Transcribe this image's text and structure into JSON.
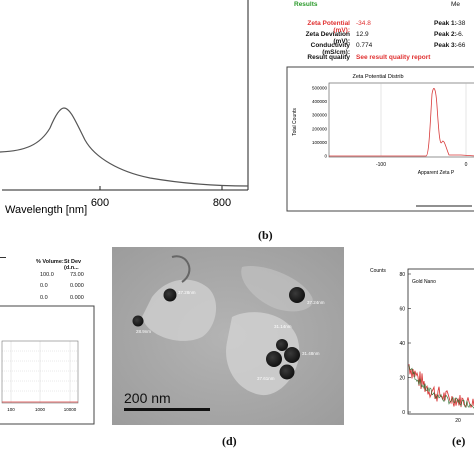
{
  "panel_labels": {
    "b": "(b)",
    "d": "(d)",
    "e": "(e)"
  },
  "uvvis": {
    "xlabel": "Wavelength [nm]",
    "tick_labels": [
      "600",
      "800"
    ]
  },
  "zeta": {
    "results_heading": "Results",
    "header_right": "Me",
    "rows": [
      {
        "label": "Zeta Potential (mV):",
        "value": "-34.8",
        "peak_label": "Peak 1:",
        "peak_value": "-38"
      },
      {
        "label": "Zeta Deviation (mV):",
        "value": "12.9",
        "peak_label": "Peak 2:",
        "peak_value": "-6."
      },
      {
        "label": "Conductivity (mS/cm):",
        "value": "0.774",
        "peak_label": "Peak 3:",
        "peak_value": "-66"
      }
    ],
    "quality_label": "Result quality",
    "quality_value": "See result quality report",
    "chart_title": "Zeta Potential Distrib",
    "ylabel": "Total Counts",
    "yticks": [
      "500000",
      "400000",
      "300000",
      "200000",
      "100000",
      "0"
    ],
    "xticks": [
      "-100",
      "0"
    ],
    "xlabel": "Apparent Zeta P"
  },
  "dls_table": {
    "headers": [
      "% Volume:",
      "St Dev (d.n..."
    ],
    "rows": [
      [
        "100.0",
        "73.00"
      ],
      [
        "0.0",
        "0.000"
      ],
      [
        "0.0",
        "0.000"
      ]
    ],
    "xticks": [
      "100",
      "1000",
      "10000"
    ]
  },
  "tem": {
    "scalebar": "200 nm",
    "particle_labels": [
      "37.28nm",
      "28.9nm",
      "37.24nm",
      "31.14nm",
      "31.48nm",
      "37.61nm"
    ]
  },
  "xrd": {
    "counts_label": "Counts",
    "legend": "Gold Nano",
    "yticks": [
      "80",
      "60",
      "40",
      "20",
      "0"
    ],
    "xticks": [
      "20"
    ]
  },
  "colors": {
    "red_text": "#e03030",
    "green_text": "#2a9a2a",
    "spectrum_red": "#d83a3a"
  }
}
